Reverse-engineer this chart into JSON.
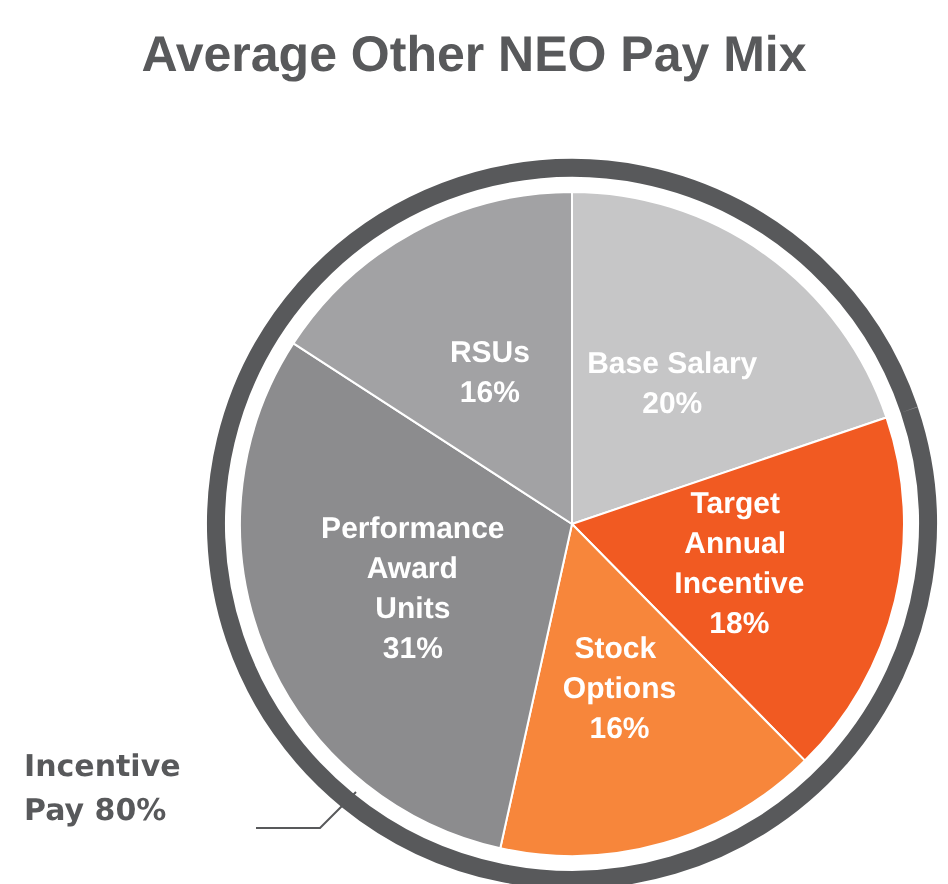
{
  "chart_data": {
    "type": "pie",
    "title": "Average Other NEO Pay Mix",
    "categories": [
      "Base Salary",
      "Target Annual Incentive",
      "Stock Options",
      "Performance Award Units",
      "RSUs"
    ],
    "values": [
      20,
      18,
      16,
      31,
      16
    ],
    "value_labels": [
      "20%",
      "18%",
      "16%",
      "31%",
      "16%"
    ],
    "colors": [
      "#c6c6c7",
      "#f15a22",
      "#f7863b",
      "#8c8c8e",
      "#a2a2a4"
    ],
    "annotations": [
      "Incentive Pay 80%"
    ],
    "legend": false
  }
}
